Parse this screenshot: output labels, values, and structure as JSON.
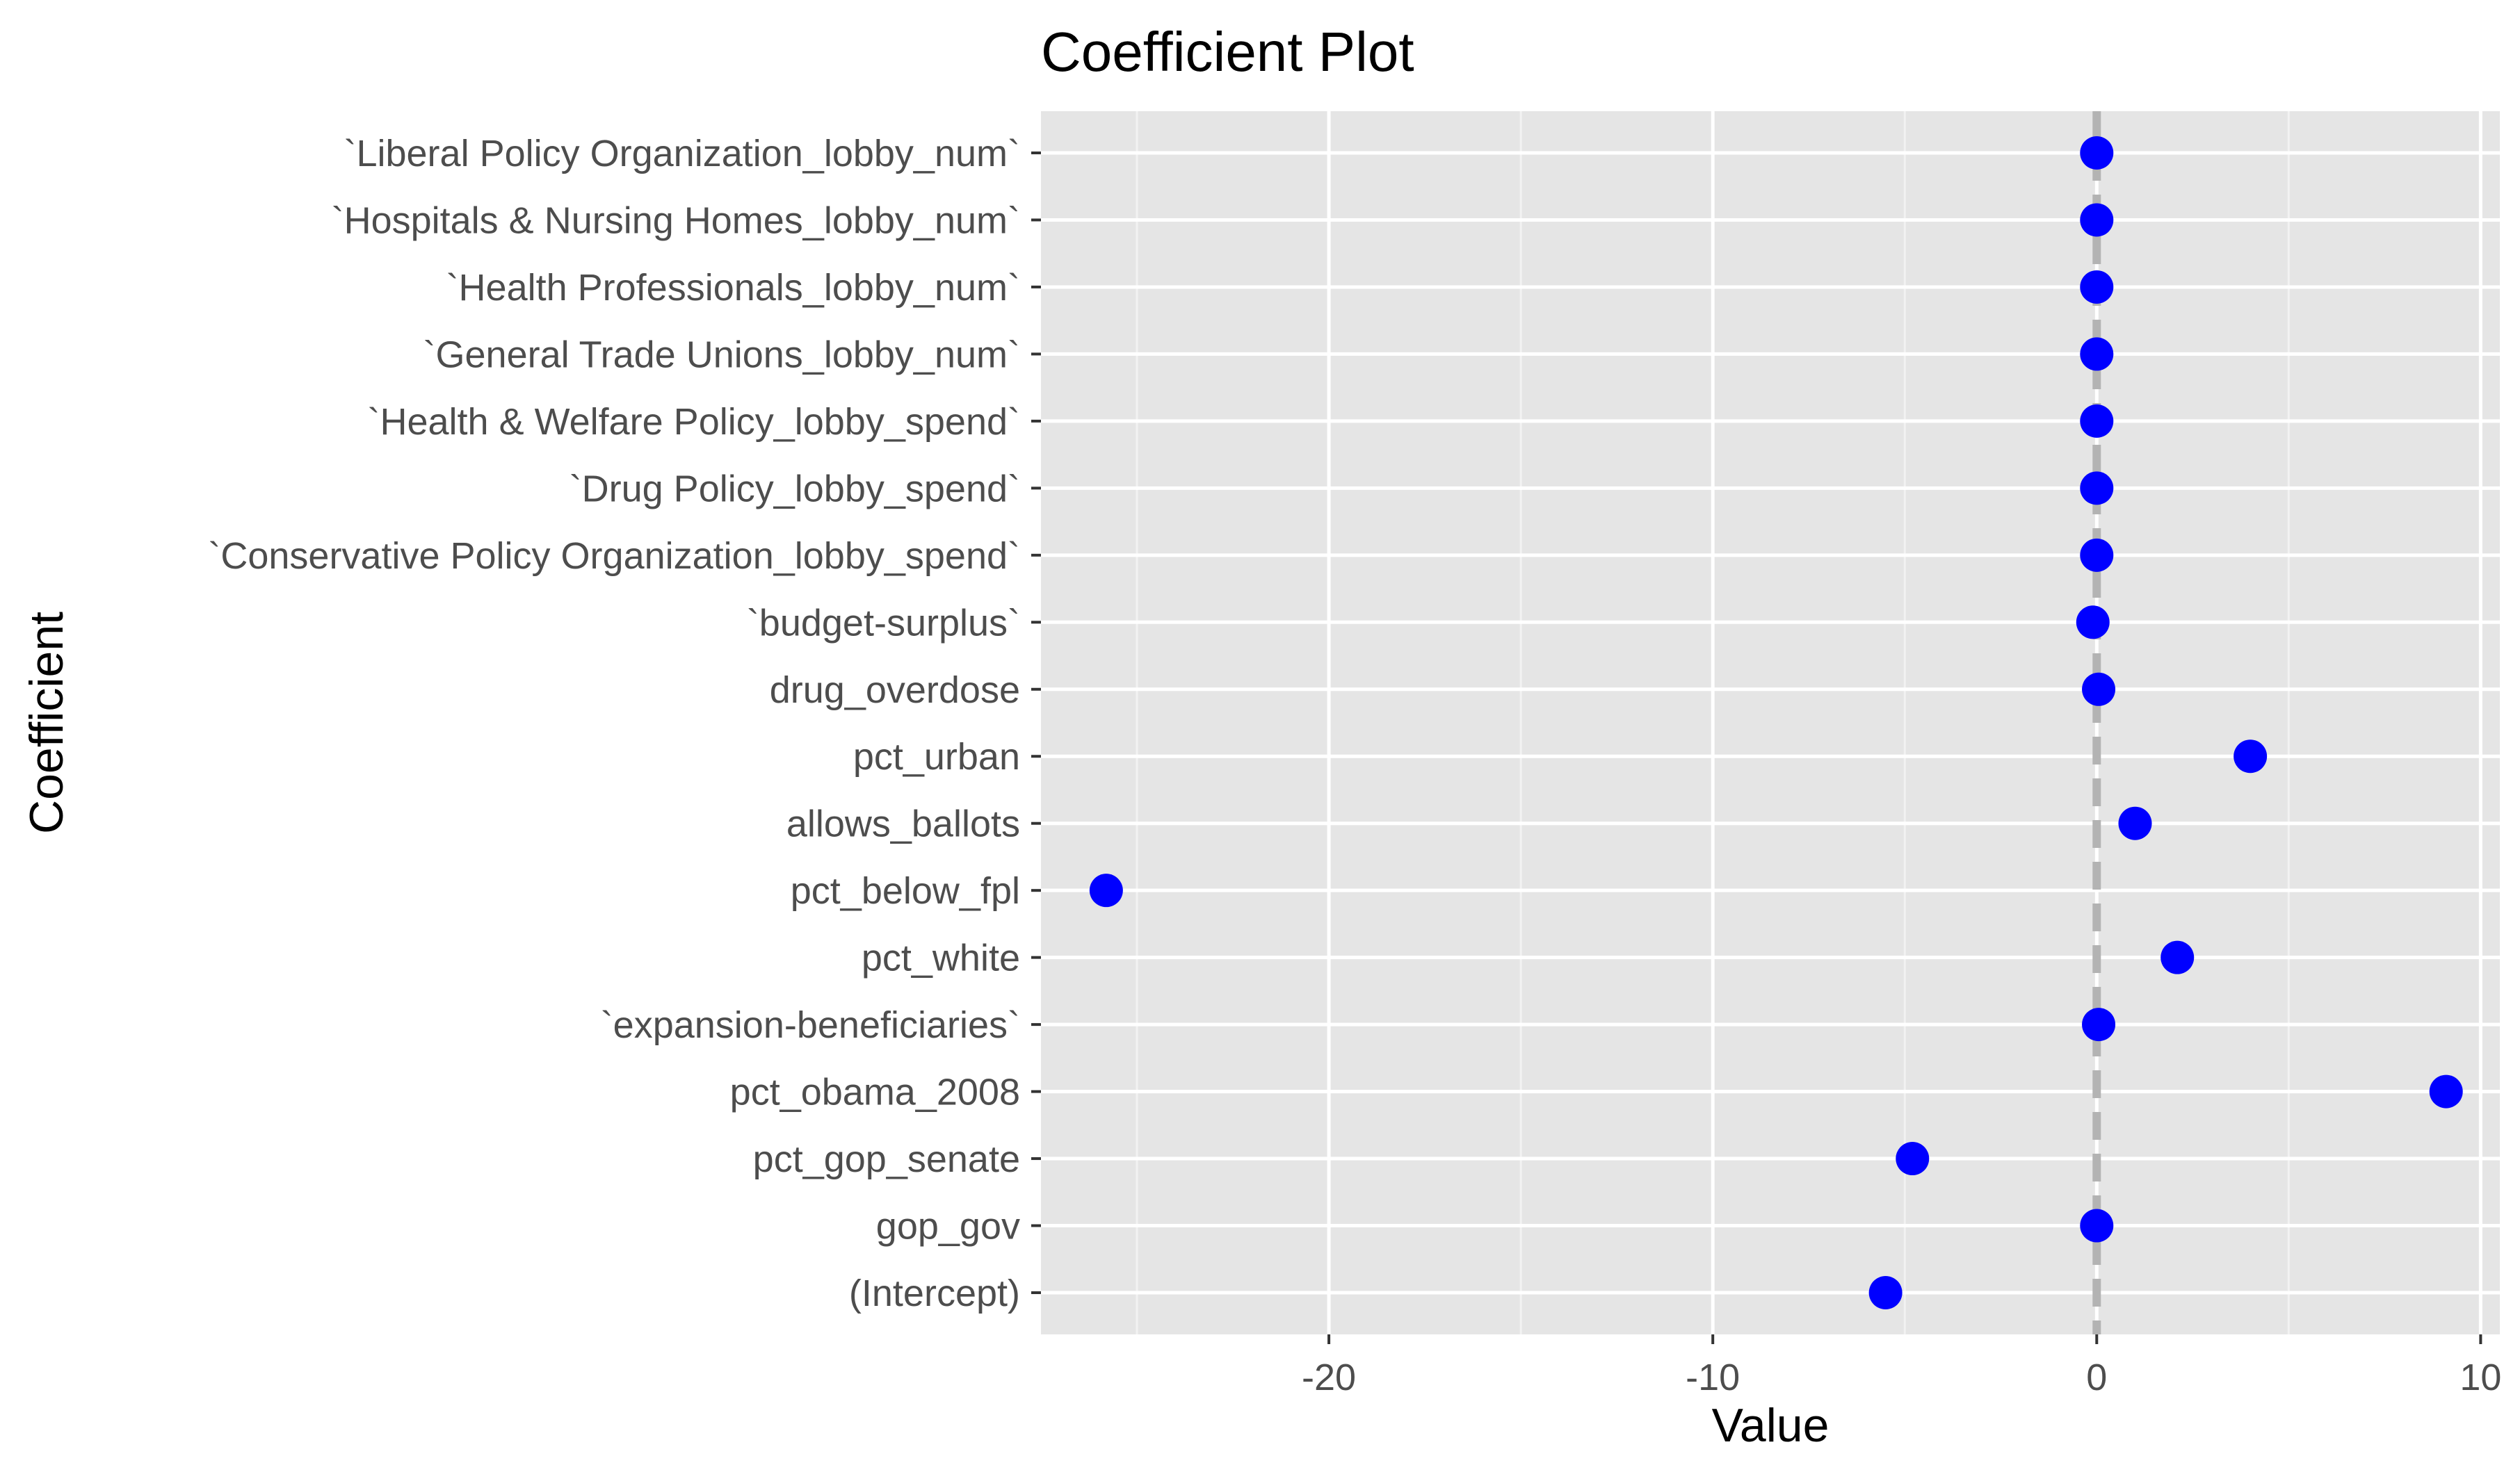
{
  "chart_data": {
    "type": "scatter",
    "title": "Coefficient Plot",
    "xlabel": "Value",
    "ylabel": "Coefficient",
    "xlim": [
      -27.5,
      10.5
    ],
    "x_ticks": [
      -20,
      -10,
      0,
      10
    ],
    "x_tick_labels": [
      "-20",
      "-10",
      "0",
      "10"
    ],
    "reference_line": {
      "x": 0,
      "style": "dashed",
      "color": "#b3b3b3"
    },
    "point_color": "#0000ff",
    "panel_background": "#e5e5e5",
    "grid": true,
    "categories": [
      "`Liberal Policy Organization_lobby_num`",
      "`Hospitals & Nursing Homes_lobby_num`",
      "`Health Professionals_lobby_num`",
      "`General Trade Unions_lobby_num`",
      "`Health & Welfare Policy_lobby_spend`",
      "`Drug Policy_lobby_spend`",
      "`Conservative Policy Organization_lobby_spend`",
      "`budget-surplus`",
      "drug_overdose",
      "pct_urban",
      "allows_ballots",
      "pct_below_fpl",
      "pct_white",
      "`expansion-beneficiaries`",
      "pct_obama_2008",
      "pct_gop_senate",
      "gop_gov",
      "(Intercept)"
    ],
    "values": [
      0,
      0,
      0,
      0,
      0,
      0,
      0,
      -0.1,
      0.05,
      4.0,
      1.0,
      -25.8,
      2.1,
      0.05,
      9.1,
      -4.8,
      0,
      -5.5
    ]
  }
}
